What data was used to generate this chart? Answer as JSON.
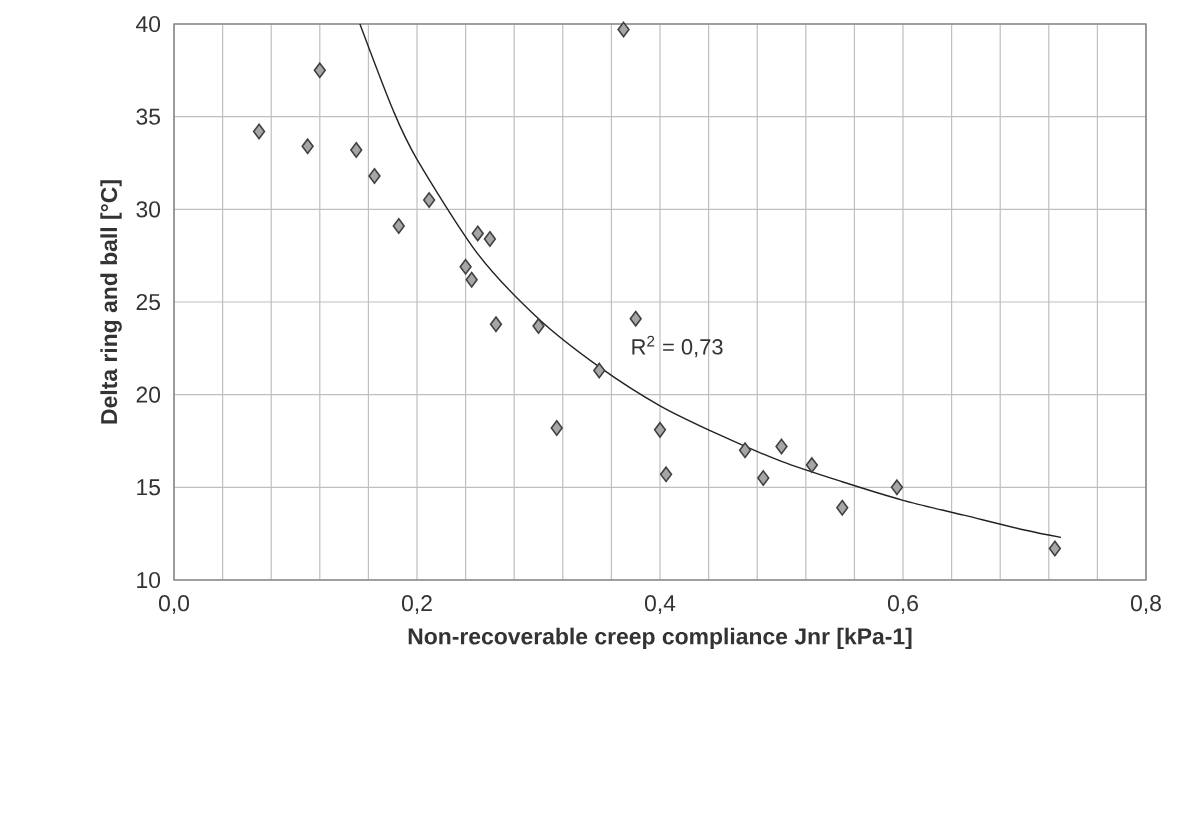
{
  "chart_data": {
    "type": "scatter",
    "xlabel": "Non-recoverable creep compliance Jnr [kPa-1]",
    "ylabel": "Delta ring and ball [°C]",
    "xlim": [
      0,
      0.8
    ],
    "ylim": [
      10,
      40
    ],
    "xticks": [
      {
        "value": 0,
        "label": "0,0"
      },
      {
        "value": 0.2,
        "label": "0,2"
      },
      {
        "value": 0.4,
        "label": "0,4"
      },
      {
        "value": 0.6,
        "label": "0,6"
      },
      {
        "value": 0.8,
        "label": "0,8"
      }
    ],
    "yticks": [
      10,
      15,
      20,
      25,
      30,
      35,
      40
    ],
    "grid": true,
    "annotations": [
      "R$^{2}$ = 0,73"
    ],
    "series": [
      {
        "marker": "diamond",
        "color": "#a6a6a6",
        "x": [
          0.07,
          0.11,
          0.12,
          0.15,
          0.165,
          0.185,
          0.21,
          0.24,
          0.245,
          0.25,
          0.26,
          0.265,
          0.3,
          0.315,
          0.35,
          0.37,
          0.38,
          0.4,
          0.405,
          0.47,
          0.485,
          0.5,
          0.525,
          0.55,
          0.595,
          0.725
        ],
        "values": [
          34.2,
          33.4,
          37.5,
          33.2,
          31.8,
          29.1,
          30.5,
          26.9,
          26.2,
          28.7,
          28.4,
          23.8,
          23.7,
          18.2,
          21.3,
          39.7,
          24.1,
          18.1,
          15.7,
          17.0,
          15.5,
          17.2,
          16.2,
          13.9,
          15.0,
          11.7
        ]
      },
      {
        "type": "line",
        "color": "#222222",
        "x": [
          0.153,
          0.18,
          0.2,
          0.25,
          0.3,
          0.35,
          0.4,
          0.45,
          0.5,
          0.55,
          0.6,
          0.65,
          0.7,
          0.73
        ],
        "values": [
          40.0,
          35.4,
          32.7,
          27.6,
          24.1,
          21.5,
          19.4,
          17.8,
          16.4,
          15.3,
          14.3,
          13.5,
          12.7,
          12.3
        ]
      }
    ]
  }
}
